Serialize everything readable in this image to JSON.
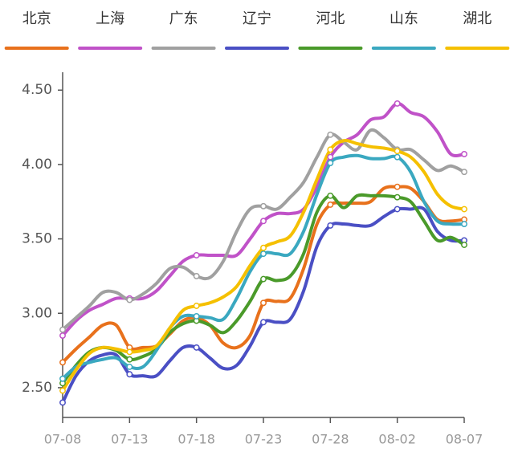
{
  "chart_data": {
    "type": "line",
    "categories": [
      "07-08",
      null,
      null,
      null,
      null,
      "07-13",
      null,
      null,
      null,
      null,
      "07-18",
      null,
      null,
      null,
      null,
      "07-23",
      null,
      null,
      null,
      null,
      "07-28",
      null,
      null,
      null,
      null,
      "08-02",
      null,
      null,
      null,
      null,
      "08-07"
    ],
    "ylim": [
      2.3,
      4.62
    ],
    "yticks": [
      {
        "value": 2.5,
        "label": "2.50"
      },
      {
        "value": 3,
        "label": "3.00"
      },
      {
        "value": 3.5,
        "label": "3.50"
      },
      {
        "value": 4,
        "label": "4.00"
      },
      {
        "value": 4.5,
        "label": "4.50"
      }
    ],
    "series": [
      {
        "name": "北京",
        "color": "#e8711c",
        "values": [
          2.67,
          2.76,
          2.84,
          2.92,
          2.92,
          2.77,
          2.77,
          2.78,
          2.86,
          2.95,
          2.97,
          2.92,
          2.8,
          2.77,
          2.85,
          3.07,
          3.08,
          3.1,
          3.3,
          3.6,
          3.73,
          3.74,
          3.74,
          3.75,
          3.84,
          3.85,
          3.84,
          3.75,
          3.63,
          3.62,
          3.63
        ]
      },
      {
        "name": "上海",
        "color": "#c052c8",
        "values": [
          2.85,
          2.95,
          3.02,
          3.06,
          3.1,
          3.1,
          3.1,
          3.15,
          3.25,
          3.35,
          3.39,
          3.39,
          3.39,
          3.39,
          3.5,
          3.62,
          3.67,
          3.67,
          3.7,
          3.85,
          4.05,
          4.15,
          4.2,
          4.3,
          4.32,
          4.41,
          4.35,
          4.32,
          4.22,
          4.07,
          4.07
        ]
      },
      {
        "name": "广东",
        "color": "#a0a0a0",
        "values": [
          2.89,
          2.97,
          3.05,
          3.14,
          3.14,
          3.09,
          3.13,
          3.2,
          3.3,
          3.31,
          3.25,
          3.24,
          3.35,
          3.55,
          3.7,
          3.72,
          3.7,
          3.78,
          3.88,
          4.05,
          4.2,
          4.15,
          4.1,
          4.23,
          4.18,
          4.1,
          4.1,
          4.03,
          3.96,
          3.99,
          3.95
        ]
      },
      {
        "name": "辽宁",
        "color": "#4a4fc4",
        "values": [
          2.4,
          2.58,
          2.68,
          2.72,
          2.72,
          2.59,
          2.58,
          2.58,
          2.68,
          2.77,
          2.77,
          2.7,
          2.63,
          2.65,
          2.78,
          2.94,
          2.94,
          2.96,
          3.15,
          3.45,
          3.59,
          3.6,
          3.59,
          3.59,
          3.65,
          3.7,
          3.7,
          3.7,
          3.55,
          3.49,
          3.49
        ]
      },
      {
        "name": "河北",
        "color": "#4a9a2a",
        "values": [
          2.53,
          2.65,
          2.74,
          2.77,
          2.75,
          2.69,
          2.71,
          2.76,
          2.87,
          2.93,
          2.95,
          2.92,
          2.87,
          2.95,
          3.08,
          3.23,
          3.22,
          3.25,
          3.4,
          3.68,
          3.79,
          3.71,
          3.79,
          3.79,
          3.79,
          3.78,
          3.75,
          3.62,
          3.49,
          3.51,
          3.46
        ]
      },
      {
        "name": "山东",
        "color": "#3aa8c0",
        "values": [
          2.56,
          2.64,
          2.67,
          2.69,
          2.7,
          2.64,
          2.64,
          2.75,
          2.9,
          2.98,
          2.98,
          2.97,
          2.96,
          3.1,
          3.28,
          3.4,
          3.4,
          3.4,
          3.55,
          3.8,
          4.01,
          4.05,
          4.06,
          4.04,
          4.04,
          4.05,
          3.95,
          3.75,
          3.62,
          3.6,
          3.6
        ]
      },
      {
        "name": "湖北",
        "color": "#f5c000",
        "values": [
          2.48,
          2.62,
          2.73,
          2.77,
          2.76,
          2.74,
          2.75,
          2.78,
          2.9,
          3.02,
          3.05,
          3.07,
          3.11,
          3.18,
          3.32,
          3.44,
          3.48,
          3.52,
          3.68,
          3.9,
          4.1,
          4.16,
          4.14,
          4.12,
          4.11,
          4.09,
          4.05,
          3.95,
          3.8,
          3.72,
          3.7
        ]
      }
    ]
  }
}
